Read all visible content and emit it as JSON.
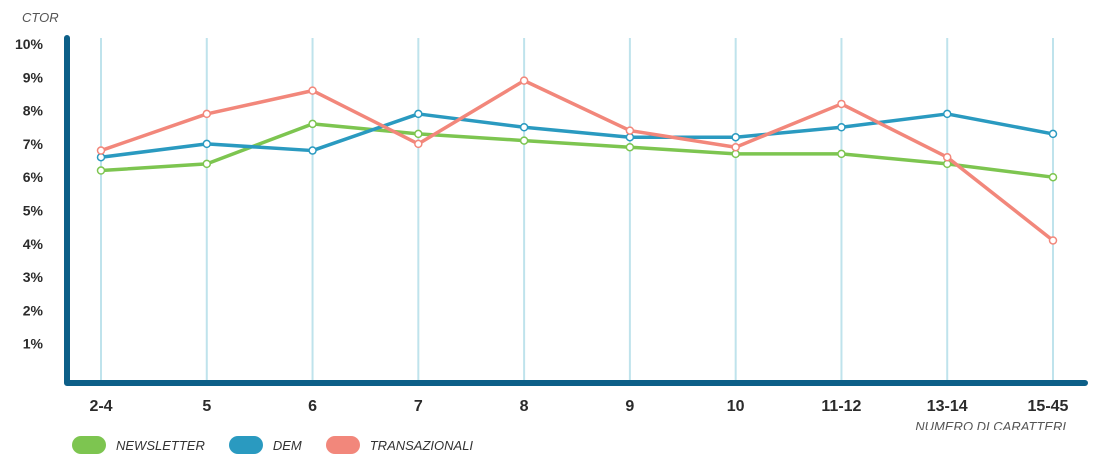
{
  "chart_data": {
    "type": "line",
    "ylabel": "CTOR",
    "xlabel": "NUMERO DI CARATTERI",
    "categories": [
      "2-4",
      "5",
      "6",
      "7",
      "8",
      "9",
      "10",
      "11-12",
      "13-14",
      "15-45"
    ],
    "y_ticks": [
      "1%",
      "2%",
      "3%",
      "4%",
      "5%",
      "6%",
      "7%",
      "8%",
      "9%",
      "10%"
    ],
    "ylim": [
      0,
      10
    ],
    "grid": "vertical",
    "legend_position": "bottom-left",
    "series": [
      {
        "name": "NEWSLETTER",
        "color": "#7dc550",
        "values": [
          6.2,
          6.4,
          7.6,
          7.3,
          7.1,
          6.9,
          6.7,
          6.7,
          6.4,
          6.0
        ]
      },
      {
        "name": "DEM",
        "color": "#2a9ac0",
        "values": [
          6.6,
          7.0,
          6.8,
          7.9,
          7.5,
          7.2,
          7.2,
          7.5,
          7.9,
          7.3
        ]
      },
      {
        "name": "TRANSAZIONALI",
        "color": "#f2877b",
        "values": [
          6.8,
          7.9,
          8.6,
          7.0,
          8.9,
          7.4,
          6.9,
          8.2,
          6.6,
          4.1
        ]
      }
    ],
    "colors": {
      "axis": "#0d5f88",
      "grid": "#bfe3ec"
    }
  }
}
